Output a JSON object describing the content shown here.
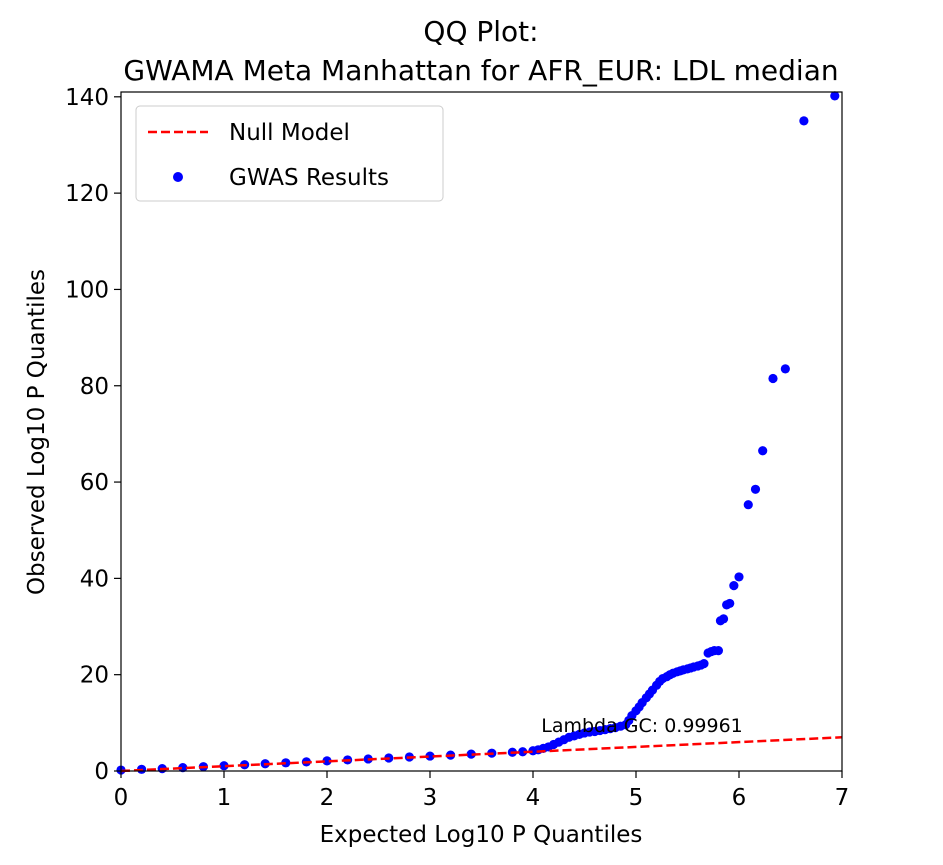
{
  "chart_data": {
    "type": "scatter",
    "title": [
      "QQ Plot:",
      "GWAMA Meta Manhattan for AFR_EUR: LDL median"
    ],
    "xlabel": "Expected Log10 P Quantiles",
    "ylabel": "Observed Log10 P Quantiles",
    "xlim": [
      0,
      7
    ],
    "ylim": [
      0,
      141
    ],
    "xticks": [
      0,
      1,
      2,
      3,
      4,
      5,
      6,
      7
    ],
    "yticks": [
      0,
      20,
      40,
      60,
      80,
      100,
      120,
      140
    ],
    "grid": false,
    "legend_position": "top-left",
    "annotation": {
      "text": "Lambda GC: 0.99961",
      "x": 4.08,
      "y": 8.1
    },
    "series": [
      {
        "name": "Null Model",
        "kind": "line",
        "style": "dashed",
        "color": "#ff0000",
        "x": [
          0,
          7
        ],
        "y": [
          0,
          7
        ]
      },
      {
        "name": "GWAS Results",
        "kind": "scatter",
        "color": "#0000ff",
        "x": [
          0.0,
          0.2,
          0.4,
          0.6,
          0.8,
          1.0,
          1.2,
          1.4,
          1.6,
          1.8,
          2.0,
          2.2,
          2.4,
          2.6,
          2.8,
          3.0,
          3.2,
          3.4,
          3.6,
          3.8,
          3.9,
          4.0,
          4.05,
          4.1,
          4.15,
          4.2,
          4.25,
          4.3,
          4.35,
          4.4,
          4.45,
          4.5,
          4.55,
          4.6,
          4.65,
          4.7,
          4.75,
          4.8,
          4.85,
          4.9,
          4.93,
          4.96,
          5.0,
          5.03,
          5.06,
          5.1,
          5.13,
          5.16,
          5.2,
          5.23,
          5.26,
          5.3,
          5.33,
          5.36,
          5.4,
          5.43,
          5.46,
          5.5,
          5.53,
          5.56,
          5.6,
          5.63,
          5.66,
          5.7,
          5.73,
          5.76,
          5.8,
          5.82,
          5.85,
          5.88,
          5.91,
          5.95,
          6.0,
          6.09,
          6.16,
          6.23,
          6.33,
          6.45,
          6.63,
          6.93
        ],
        "y": [
          0.2,
          0.35,
          0.5,
          0.7,
          0.9,
          1.1,
          1.3,
          1.5,
          1.7,
          1.9,
          2.1,
          2.3,
          2.5,
          2.7,
          2.9,
          3.1,
          3.3,
          3.5,
          3.7,
          3.9,
          4.0,
          4.2,
          4.4,
          4.7,
          5.0,
          5.5,
          6.0,
          6.5,
          7.0,
          7.3,
          7.6,
          7.9,
          8.1,
          8.2,
          8.4,
          8.6,
          8.8,
          9.0,
          9.3,
          9.6,
          10.5,
          11.5,
          12.5,
          13.3,
          14.2,
          15.2,
          16.0,
          16.8,
          17.8,
          18.6,
          19.2,
          19.6,
          20.0,
          20.3,
          20.6,
          20.8,
          21.0,
          21.2,
          21.4,
          21.6,
          21.8,
          22.0,
          22.3,
          24.5,
          24.8,
          25.0,
          25.0,
          31.2,
          31.6,
          34.5,
          34.8,
          38.5,
          40.3,
          55.3,
          58.5,
          66.5,
          81.5,
          83.5,
          135.0,
          140.2
        ]
      }
    ]
  }
}
